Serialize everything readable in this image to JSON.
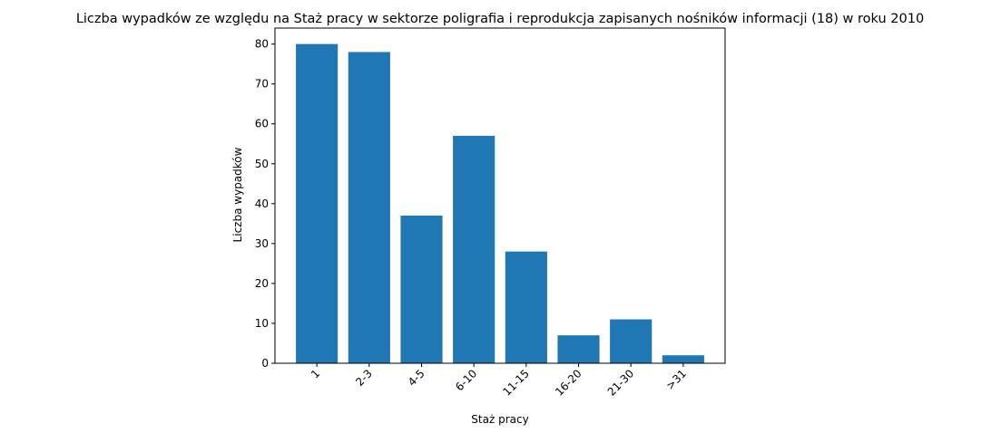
{
  "chart_data": {
    "type": "bar",
    "title": "Liczba wypadków ze względu na Staż pracy w sektorze poligrafia i reprodukcja zapisanych nośników informacji  (18) w roku 2010",
    "xlabel": "Staż pracy",
    "ylabel": "Liczba wypadków",
    "categories": [
      "1",
      "2-3",
      "4-5",
      "6-10",
      "11-15",
      "16-20",
      "21-30",
      ">31"
    ],
    "values": [
      80,
      78,
      37,
      57,
      28,
      7,
      11,
      2
    ],
    "ylim": [
      0,
      84
    ],
    "yticks": [
      0,
      10,
      20,
      30,
      40,
      50,
      60,
      70,
      80
    ],
    "bar_color": "#1f77b4",
    "grid": false,
    "xtick_rotation": 45
  }
}
